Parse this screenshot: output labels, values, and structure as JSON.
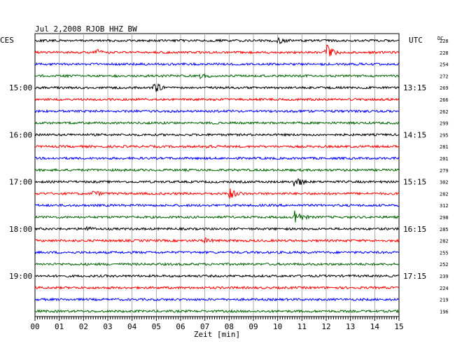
{
  "chart_data": {
    "type": "line",
    "title": "Jul 2,2008   RJOB HHZ BW",
    "left_label": "CES",
    "right_label": "UTC",
    "dc_label": "DC",
    "xlabel": "Zeit [min]",
    "x_ticks": [
      "00",
      "01",
      "02",
      "03",
      "04",
      "05",
      "06",
      "07",
      "08",
      "09",
      "10",
      "11",
      "12",
      "13",
      "14",
      "15"
    ],
    "xlim": [
      0,
      15
    ],
    "grid": true,
    "colors": [
      "#000000",
      "#ff0000",
      "#0000ff",
      "#006400"
    ],
    "traces": [
      {
        "dc": "228",
        "left": "",
        "right": "",
        "events": [
          {
            "x": 10.0,
            "amp": 4
          }
        ]
      },
      {
        "dc": "228",
        "left": "",
        "right": "",
        "events": [
          {
            "x": 2.5,
            "amp": 5
          },
          {
            "x": 12.0,
            "amp": 12
          }
        ]
      },
      {
        "dc": "254",
        "left": "",
        "right": "",
        "events": []
      },
      {
        "dc": "272",
        "left": "",
        "right": "",
        "events": [
          {
            "x": 6.8,
            "amp": 4
          }
        ]
      },
      {
        "dc": "269",
        "left": "15:00",
        "right": "13:15",
        "events": [
          {
            "x": 4.9,
            "amp": 9
          }
        ]
      },
      {
        "dc": "266",
        "left": "",
        "right": "",
        "events": []
      },
      {
        "dc": "262",
        "left": "",
        "right": "",
        "events": []
      },
      {
        "dc": "299",
        "left": "",
        "right": "",
        "events": []
      },
      {
        "dc": "295",
        "left": "16:00",
        "right": "14:15",
        "events": []
      },
      {
        "dc": "281",
        "left": "",
        "right": "",
        "events": [
          {
            "x": 7.1,
            "amp": 3
          }
        ]
      },
      {
        "dc": "201",
        "left": "",
        "right": "",
        "events": []
      },
      {
        "dc": "279",
        "left": "",
        "right": "",
        "events": []
      },
      {
        "dc": "302",
        "left": "17:00",
        "right": "15:15",
        "events": [
          {
            "x": 10.7,
            "amp": 10
          }
        ]
      },
      {
        "dc": "282",
        "left": "",
        "right": "",
        "events": [
          {
            "x": 2.4,
            "amp": 4
          },
          {
            "x": 8.0,
            "amp": 9
          }
        ]
      },
      {
        "dc": "312",
        "left": "",
        "right": "",
        "events": []
      },
      {
        "dc": "298",
        "left": "",
        "right": "",
        "events": [
          {
            "x": 10.7,
            "amp": 13
          }
        ]
      },
      {
        "dc": "285",
        "left": "18:00",
        "right": "16:15",
        "events": [
          {
            "x": 2.1,
            "amp": 3
          }
        ]
      },
      {
        "dc": "282",
        "left": "",
        "right": "",
        "events": [
          {
            "x": 7.0,
            "amp": 3
          }
        ]
      },
      {
        "dc": "255",
        "left": "",
        "right": "",
        "events": []
      },
      {
        "dc": "252",
        "left": "",
        "right": "",
        "events": []
      },
      {
        "dc": "239",
        "left": "19:00",
        "right": "17:15",
        "events": []
      },
      {
        "dc": "224",
        "left": "",
        "right": "",
        "events": []
      },
      {
        "dc": "219",
        "left": "",
        "right": "",
        "events": []
      },
      {
        "dc": "196",
        "left": "",
        "right": "",
        "events": []
      }
    ]
  }
}
